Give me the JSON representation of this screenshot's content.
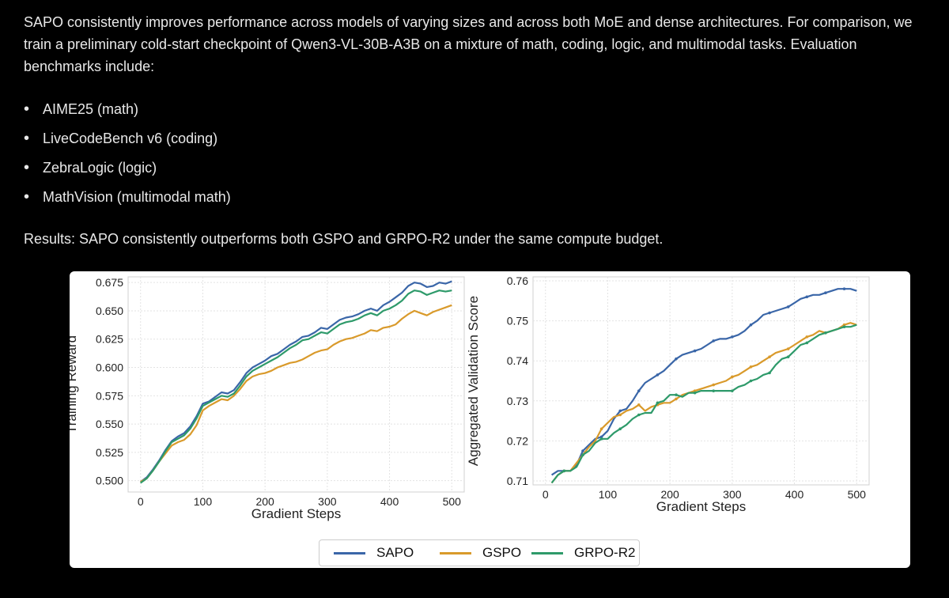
{
  "text": {
    "intro": "SAPO consistently improves performance across models of varying sizes and across both MoE and dense architectures. For comparison, we train a preliminary cold-start checkpoint of Qwen3-VL-30B-A3B on a mixture of math, coding, logic, and multimodal tasks. Evaluation benchmarks include:",
    "benchmarks": [
      "AIME25 (math)",
      "LiveCodeBench v6 (coding)",
      "ZebraLogic (logic)",
      "MathVision (multimodal math)"
    ],
    "results": "Results: SAPO consistently outperforms both GSPO and GRPO-R2 under the same compute budget."
  },
  "colors": {
    "SAPO": "#3a66a8",
    "GSPO": "#d99a2b",
    "GRPO-R2": "#2e9a6a"
  },
  "chart_data": [
    {
      "type": "line",
      "title": "",
      "xlabel": "Gradient Steps",
      "ylabel": "Training Reward",
      "xlim": [
        -20,
        520
      ],
      "ylim": [
        0.49,
        0.68
      ],
      "xticks": [
        0,
        100,
        200,
        300,
        400,
        500
      ],
      "xtick_labels": [
        "0",
        "100",
        "200",
        "300",
        "400",
        "500"
      ],
      "yticks": [
        0.5,
        0.525,
        0.55,
        0.575,
        0.6,
        0.625,
        0.65,
        0.675
      ],
      "ytick_labels": [
        "0.500",
        "0.525",
        "0.550",
        "0.575",
        "0.600",
        "0.625",
        "0.650",
        "0.675"
      ],
      "grid": true,
      "series": [
        {
          "name": "SAPO",
          "x": [
            0,
            10,
            20,
            30,
            40,
            50,
            60,
            70,
            80,
            90,
            100,
            110,
            120,
            130,
            140,
            150,
            160,
            170,
            180,
            190,
            200,
            210,
            220,
            230,
            240,
            250,
            260,
            270,
            280,
            290,
            300,
            310,
            320,
            330,
            340,
            350,
            360,
            370,
            380,
            390,
            400,
            410,
            420,
            430,
            440,
            450,
            460,
            470,
            480,
            490,
            500
          ],
          "y": [
            0.499,
            0.503,
            0.51,
            0.518,
            0.527,
            0.535,
            0.539,
            0.542,
            0.548,
            0.557,
            0.568,
            0.57,
            0.574,
            0.578,
            0.577,
            0.58,
            0.587,
            0.595,
            0.6,
            0.603,
            0.606,
            0.61,
            0.612,
            0.616,
            0.62,
            0.623,
            0.627,
            0.628,
            0.631,
            0.635,
            0.634,
            0.638,
            0.642,
            0.644,
            0.645,
            0.647,
            0.65,
            0.652,
            0.65,
            0.655,
            0.658,
            0.662,
            0.666,
            0.672,
            0.675,
            0.674,
            0.671,
            0.672,
            0.675,
            0.674,
            0.676
          ]
        },
        {
          "name": "GSPO",
          "x": [
            0,
            10,
            20,
            30,
            40,
            50,
            60,
            70,
            80,
            90,
            100,
            110,
            120,
            130,
            140,
            150,
            160,
            170,
            180,
            190,
            200,
            210,
            220,
            230,
            240,
            250,
            260,
            270,
            280,
            290,
            300,
            310,
            320,
            330,
            340,
            350,
            360,
            370,
            380,
            390,
            400,
            410,
            420,
            430,
            440,
            450,
            460,
            470,
            480,
            490,
            500
          ],
          "y": [
            0.499,
            0.502,
            0.509,
            0.517,
            0.524,
            0.531,
            0.534,
            0.536,
            0.541,
            0.549,
            0.562,
            0.566,
            0.569,
            0.572,
            0.571,
            0.575,
            0.581,
            0.588,
            0.592,
            0.594,
            0.595,
            0.597,
            0.6,
            0.602,
            0.604,
            0.605,
            0.607,
            0.61,
            0.613,
            0.615,
            0.616,
            0.62,
            0.623,
            0.625,
            0.626,
            0.628,
            0.63,
            0.633,
            0.632,
            0.635,
            0.636,
            0.638,
            0.643,
            0.647,
            0.65,
            0.648,
            0.646,
            0.649,
            0.651,
            0.653,
            0.655
          ]
        },
        {
          "name": "GRPO-R2",
          "x": [
            0,
            10,
            20,
            30,
            40,
            50,
            60,
            70,
            80,
            90,
            100,
            110,
            120,
            130,
            140,
            150,
            160,
            170,
            180,
            190,
            200,
            210,
            220,
            230,
            240,
            250,
            260,
            270,
            280,
            290,
            300,
            310,
            320,
            330,
            340,
            350,
            360,
            370,
            380,
            390,
            400,
            410,
            420,
            430,
            440,
            450,
            460,
            470,
            480,
            490,
            500
          ],
          "y": [
            0.498,
            0.502,
            0.509,
            0.517,
            0.526,
            0.534,
            0.537,
            0.54,
            0.546,
            0.555,
            0.566,
            0.569,
            0.572,
            0.575,
            0.574,
            0.577,
            0.584,
            0.592,
            0.597,
            0.6,
            0.603,
            0.606,
            0.609,
            0.613,
            0.617,
            0.62,
            0.624,
            0.625,
            0.628,
            0.631,
            0.63,
            0.634,
            0.638,
            0.64,
            0.641,
            0.643,
            0.646,
            0.648,
            0.646,
            0.65,
            0.652,
            0.655,
            0.659,
            0.665,
            0.668,
            0.667,
            0.664,
            0.666,
            0.668,
            0.667,
            0.668
          ]
        }
      ]
    },
    {
      "type": "line",
      "title": "",
      "xlabel": "Gradient Steps",
      "ylabel": "Aggregated Validation Score",
      "xlim": [
        -20,
        520
      ],
      "ylim": [
        0.709,
        0.761
      ],
      "xticks": [
        0,
        100,
        200,
        300,
        400,
        500
      ],
      "xtick_labels": [
        "0",
        "100",
        "200",
        "300",
        "400",
        "500"
      ],
      "yticks": [
        0.71,
        0.72,
        0.73,
        0.74,
        0.75,
        0.76
      ],
      "ytick_labels": [
        "0.71",
        "0.72",
        "0.73",
        "0.74",
        "0.75",
        "0.76"
      ],
      "grid": true,
      "series": [
        {
          "name": "SAPO",
          "x": [
            10,
            20,
            30,
            40,
            50,
            60,
            70,
            80,
            90,
            100,
            110,
            120,
            130,
            140,
            150,
            160,
            170,
            180,
            190,
            200,
            210,
            220,
            230,
            240,
            250,
            260,
            270,
            280,
            290,
            300,
            310,
            320,
            330,
            340,
            350,
            360,
            370,
            380,
            390,
            400,
            410,
            420,
            430,
            440,
            450,
            460,
            470,
            480,
            490,
            500
          ],
          "y": [
            0.7115,
            0.7125,
            0.7125,
            0.7125,
            0.714,
            0.7175,
            0.719,
            0.7205,
            0.721,
            0.7225,
            0.7255,
            0.7275,
            0.728,
            0.73,
            0.7325,
            0.7345,
            0.7355,
            0.7365,
            0.7375,
            0.739,
            0.7405,
            0.7415,
            0.742,
            0.7425,
            0.743,
            0.744,
            0.745,
            0.7455,
            0.7455,
            0.746,
            0.7465,
            0.7475,
            0.749,
            0.75,
            0.7515,
            0.752,
            0.7525,
            0.753,
            0.7535,
            0.7545,
            0.7555,
            0.756,
            0.7565,
            0.7565,
            0.757,
            0.7575,
            0.758,
            0.758,
            0.758,
            0.7575
          ]
        },
        {
          "name": "GSPO",
          "x": [
            10,
            20,
            30,
            40,
            50,
            60,
            70,
            80,
            90,
            100,
            110,
            120,
            130,
            140,
            150,
            160,
            170,
            180,
            190,
            200,
            210,
            220,
            230,
            240,
            250,
            260,
            270,
            280,
            290,
            300,
            310,
            320,
            330,
            340,
            350,
            360,
            370,
            380,
            390,
            400,
            410,
            420,
            430,
            440,
            450,
            460,
            470,
            480,
            490,
            500
          ],
          "y": [
            0.7095,
            0.7115,
            0.7125,
            0.7125,
            0.7145,
            0.7165,
            0.7185,
            0.72,
            0.723,
            0.7245,
            0.726,
            0.7265,
            0.7275,
            0.728,
            0.729,
            0.7275,
            0.7285,
            0.729,
            0.7295,
            0.7295,
            0.7305,
            0.7315,
            0.732,
            0.7325,
            0.733,
            0.7335,
            0.734,
            0.7345,
            0.735,
            0.736,
            0.7365,
            0.7375,
            0.7385,
            0.739,
            0.74,
            0.741,
            0.742,
            0.7425,
            0.743,
            0.744,
            0.745,
            0.746,
            0.7465,
            0.7475,
            0.747,
            0.7475,
            0.748,
            0.749,
            0.7495,
            0.749
          ]
        },
        {
          "name": "GRPO-R2",
          "x": [
            10,
            20,
            30,
            40,
            50,
            60,
            70,
            80,
            90,
            100,
            110,
            120,
            130,
            140,
            150,
            160,
            170,
            180,
            190,
            200,
            210,
            220,
            230,
            240,
            250,
            260,
            270,
            280,
            290,
            300,
            310,
            320,
            330,
            340,
            350,
            360,
            370,
            380,
            390,
            400,
            410,
            420,
            430,
            440,
            450,
            460,
            470,
            480,
            490,
            500
          ],
          "y": [
            0.7095,
            0.7115,
            0.7125,
            0.7125,
            0.7135,
            0.7165,
            0.7175,
            0.7195,
            0.7205,
            0.7205,
            0.722,
            0.723,
            0.724,
            0.7255,
            0.7265,
            0.727,
            0.727,
            0.7295,
            0.73,
            0.7315,
            0.7315,
            0.731,
            0.732,
            0.732,
            0.7325,
            0.7325,
            0.7325,
            0.7325,
            0.7325,
            0.7325,
            0.7335,
            0.734,
            0.735,
            0.7355,
            0.7365,
            0.737,
            0.739,
            0.7405,
            0.741,
            0.7425,
            0.744,
            0.7445,
            0.7455,
            0.7465,
            0.747,
            0.7475,
            0.748,
            0.7485,
            0.7485,
            0.749
          ]
        }
      ]
    }
  ],
  "legend": {
    "items": [
      "SAPO",
      "GSPO",
      "GRPO-R2"
    ],
    "placement": "bottom-center"
  }
}
